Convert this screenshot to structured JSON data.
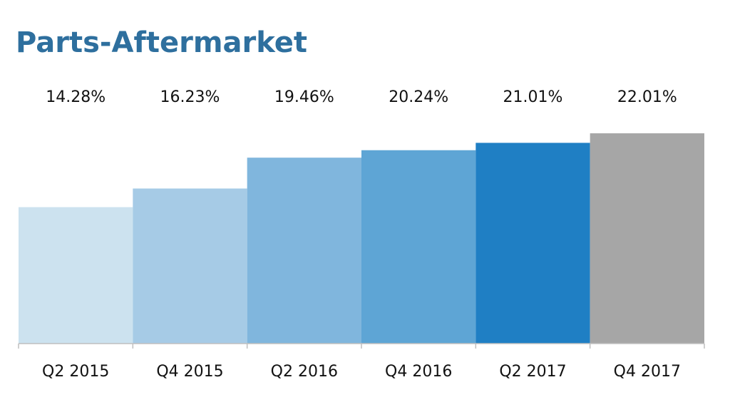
{
  "chart_data": {
    "type": "bar",
    "title": "Parts-Aftermarket",
    "categories": [
      "Q2 2015",
      "Q4 2015",
      "Q2 2016",
      "Q4 2016",
      "Q2 2017",
      "Q4 2017"
    ],
    "values": [
      14.28,
      16.23,
      19.46,
      20.24,
      21.01,
      22.01
    ],
    "value_labels": [
      "14.28%",
      "16.23%",
      "19.46%",
      "20.24%",
      "21.01%",
      "22.01%"
    ],
    "colors": [
      "#cce2ef",
      "#a6cbe6",
      "#80b6dd",
      "#5ea5d5",
      "#1f7fc4",
      "#a6a6a6"
    ]
  }
}
